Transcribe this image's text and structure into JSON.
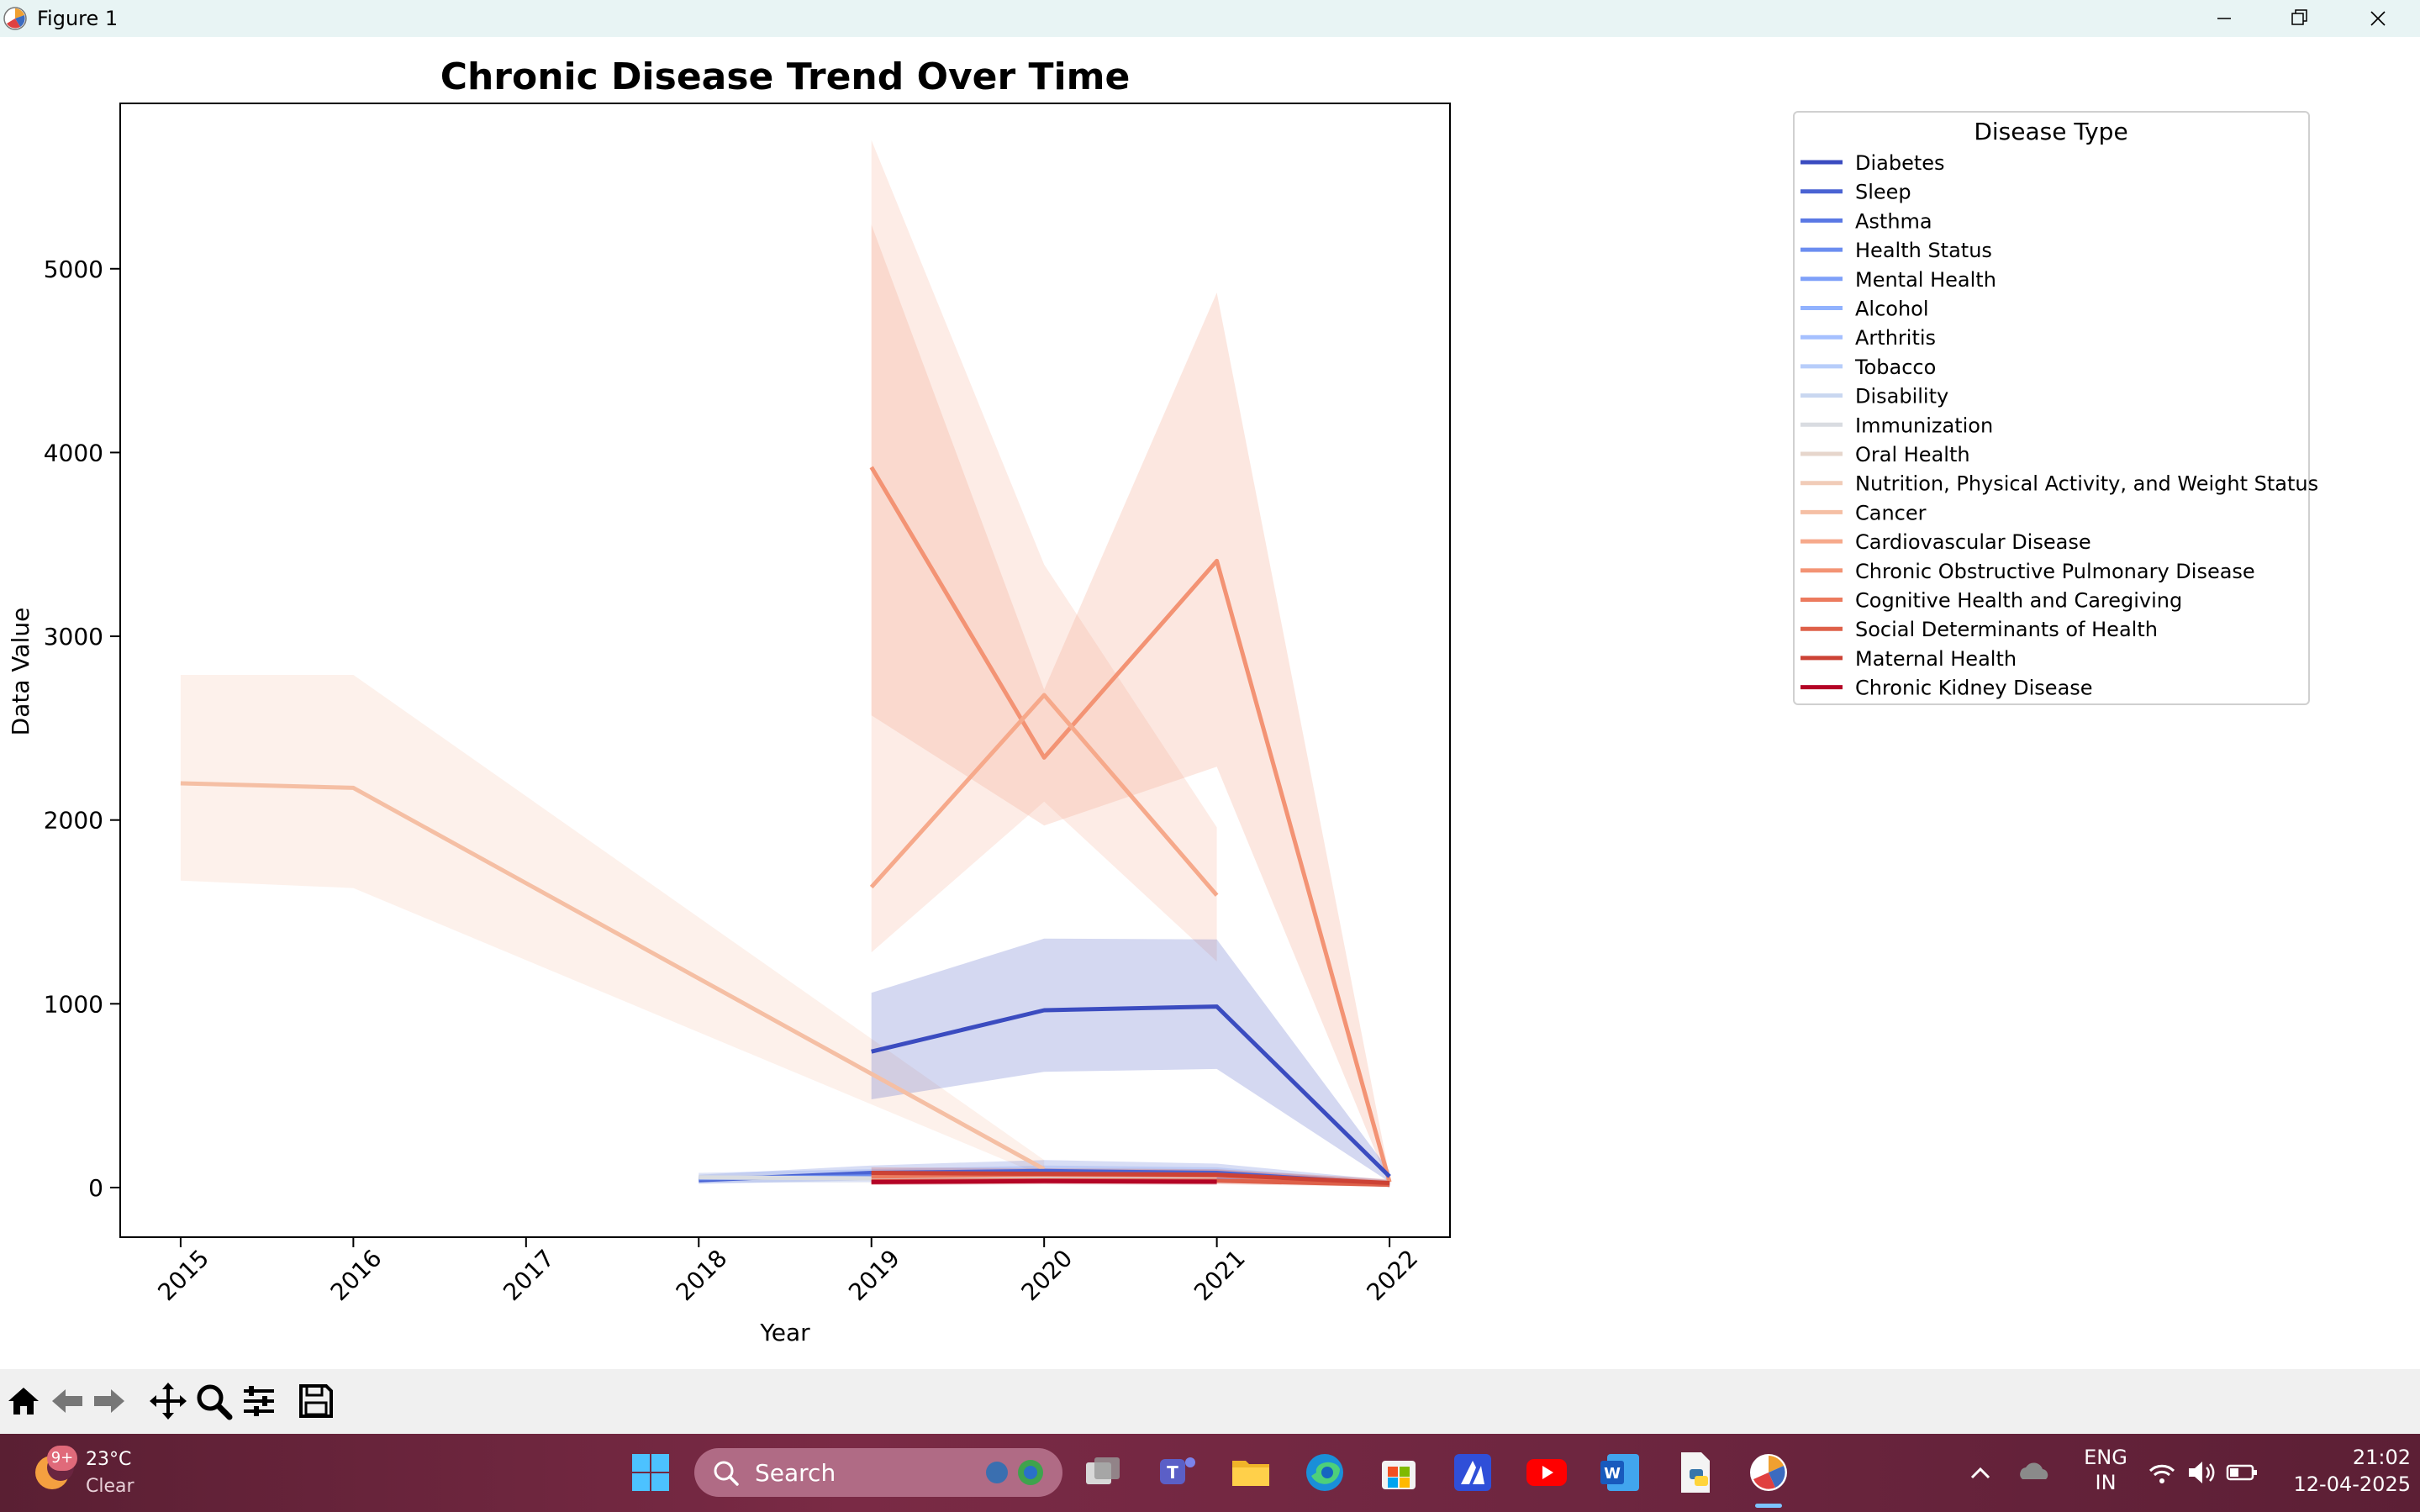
{
  "window": {
    "title": "Figure 1"
  },
  "chart_data": {
    "type": "line",
    "title": "Chronic Disease Trend Over Time",
    "xlabel": "Year",
    "ylabel": "Data Value",
    "xlim": [
      2014.65,
      2022.35
    ],
    "ylim": [
      -270,
      5900
    ],
    "xticks": [
      2015,
      2016,
      2017,
      2018,
      2019,
      2020,
      2021,
      2022
    ],
    "xtick_labels": [
      "2015",
      "2016",
      "2017",
      "2018",
      "2019",
      "2020",
      "2021",
      "2022"
    ],
    "yticks": [
      0,
      1000,
      2000,
      3000,
      4000,
      5000
    ],
    "ytick_labels": [
      "0",
      "1000",
      "2000",
      "3000",
      "4000",
      "5000"
    ],
    "grid": false,
    "legend": {
      "title": "Disease Type",
      "placement": "outside-right",
      "entries": [
        {
          "name": "Diabetes",
          "color": "#3b4cc0"
        },
        {
          "name": "Sleep",
          "color": "#4a63d3"
        },
        {
          "name": "Asthma",
          "color": "#5a78e4"
        },
        {
          "name": "Health Status",
          "color": "#6b8df0"
        },
        {
          "name": "Mental Health",
          "color": "#7ea0f9"
        },
        {
          "name": "Alcohol",
          "color": "#91b2fe"
        },
        {
          "name": "Arthritis",
          "color": "#a5c0ff"
        },
        {
          "name": "Tobacco",
          "color": "#b7cdfa"
        },
        {
          "name": "Disability",
          "color": "#c9d7f0"
        },
        {
          "name": "Immunization",
          "color": "#d9dce1"
        },
        {
          "name": "Oral Health",
          "color": "#e6d6cc"
        },
        {
          "name": "Nutrition, Physical Activity, and Weight Status",
          "color": "#f1ccb8"
        },
        {
          "name": "Cancer",
          "color": "#f5bfa4"
        },
        {
          "name": "Cardiovascular Disease",
          "color": "#f6a98b"
        },
        {
          "name": "Chronic Obstructive Pulmonary Disease",
          "color": "#f39374"
        },
        {
          "name": "Cognitive Health and Caregiving",
          "color": "#ec7a5e"
        },
        {
          "name": "Social Determinants of Health",
          "color": "#de6049"
        },
        {
          "name": "Maternal Health",
          "color": "#cc4235"
        },
        {
          "name": "Chronic Kidney Disease",
          "color": "#b40426"
        }
      ]
    },
    "series": [
      {
        "name": "Cancer",
        "color": "#f5bfa4",
        "x": [
          2015,
          2016,
          2020
        ],
        "y": [
          2200,
          2175,
          100
        ],
        "ci_low": [
          1670,
          1630,
          60
        ],
        "ci_high": [
          2790,
          2790,
          150
        ]
      },
      {
        "name": "Chronic Obstructive Pulmonary Disease",
        "color": "#f39374",
        "x": [
          2019,
          2020,
          2021,
          2022
        ],
        "y": [
          3920,
          2340,
          3410,
          30
        ],
        "ci_low": [
          2570,
          1970,
          2290,
          10
        ],
        "ci_high": [
          5240,
          2710,
          4870,
          60
        ]
      },
      {
        "name": "Cardiovascular Disease",
        "color": "#f6a98b",
        "x": [
          2019,
          2020,
          2021
        ],
        "y": [
          1635,
          2680,
          1590
        ],
        "ci_low": [
          1280,
          2100,
          1230
        ],
        "ci_high": [
          5700,
          3390,
          1960
        ]
      },
      {
        "name": "Diabetes",
        "color": "#3b4cc0",
        "x": [
          2019,
          2020,
          2021,
          2022
        ],
        "y": [
          740,
          965,
          985,
          60
        ],
        "ci_low": [
          480,
          630,
          645,
          30
        ],
        "ci_high": [
          1060,
          1355,
          1350,
          90
        ]
      },
      {
        "name": "Sleep",
        "color": "#4a63d3",
        "x": [
          2018,
          2019,
          2020,
          2021,
          2022
        ],
        "y": [
          40,
          80,
          90,
          80,
          20
        ],
        "ci_low": [
          20,
          40,
          40,
          40,
          5
        ],
        "ci_high": [
          70,
          120,
          150,
          130,
          40
        ]
      },
      {
        "name": "Health Status",
        "color": "#6b8df0",
        "x": [
          2018,
          2019,
          2020,
          2021,
          2022
        ],
        "y": [
          50,
          60,
          70,
          65,
          15
        ],
        "ci_low": [
          25,
          30,
          40,
          35,
          5
        ],
        "ci_high": [
          80,
          100,
          120,
          110,
          30
        ]
      },
      {
        "name": "Mental Health",
        "color": "#7ea0f9",
        "x": [
          2019,
          2020,
          2021,
          2022
        ],
        "y": [
          40,
          55,
          50,
          15
        ],
        "ci_low": [
          20,
          30,
          25,
          5
        ],
        "ci_high": [
          70,
          90,
          80,
          30
        ]
      },
      {
        "name": "Immunization",
        "color": "#d9dce1",
        "x": [
          2018,
          2019,
          2020,
          2021
        ],
        "y": [
          55,
          50,
          60,
          55
        ],
        "ci_low": [
          30,
          25,
          35,
          30
        ],
        "ci_high": [
          80,
          80,
          90,
          85
        ]
      },
      {
        "name": "Cognitive Health and Caregiving",
        "color": "#ec7a5e",
        "x": [
          2019,
          2020,
          2021,
          2022
        ],
        "y": [
          60,
          70,
          65,
          20
        ],
        "ci_low": [
          30,
          40,
          35,
          5
        ],
        "ci_high": [
          90,
          100,
          95,
          40
        ]
      },
      {
        "name": "Social Determinants of Health",
        "color": "#de6049",
        "x": [
          2019,
          2020,
          2021,
          2022
        ],
        "y": [
          35,
          40,
          38,
          15
        ],
        "ci_low": [
          15,
          20,
          18,
          5
        ],
        "ci_high": [
          55,
          60,
          58,
          30
        ]
      },
      {
        "name": "Maternal Health",
        "color": "#cc4235",
        "x": [
          2019,
          2020,
          2021,
          2022
        ],
        "y": [
          80,
          75,
          70,
          25
        ],
        "ci_low": [
          50,
          45,
          40,
          10
        ],
        "ci_high": [
          110,
          105,
          100,
          45
        ]
      },
      {
        "name": "Chronic Kidney Disease",
        "color": "#b40426",
        "x": [
          2019,
          2020,
          2021
        ],
        "y": [
          30,
          35,
          32
        ],
        "ci_low": [
          15,
          18,
          15
        ],
        "ci_high": [
          45,
          50,
          48
        ]
      }
    ]
  },
  "taskbar": {
    "weather_temp": "23°C",
    "weather_cond": "Clear",
    "notification_badge": "9+",
    "search_label": "Search",
    "lang_line1": "ENG",
    "lang_line2": "IN",
    "time": "21:02",
    "date": "12-04-2025"
  }
}
